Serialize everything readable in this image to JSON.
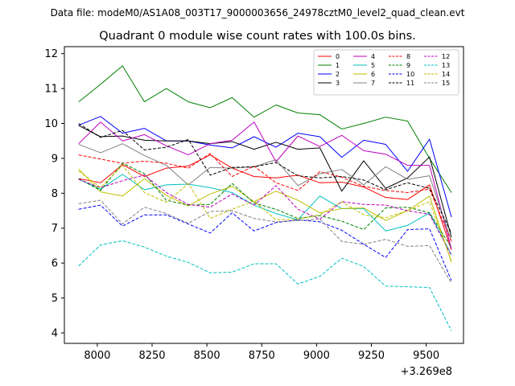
{
  "header": {
    "file_label": "Data file: modeM0/AS1A08_003T17_9000003656_24978cztM0_level2_quad_clean.evt",
    "title": "Quadrant 0 module wise count rates with 100.0s bins."
  },
  "chart_data": {
    "type": "line",
    "title": "Quadrant 0 module wise count rates with 100.0s bins.",
    "xlabel": "",
    "ylabel": "",
    "x_offset_label": "+3.269e8",
    "xlim": [
      7850,
      9670
    ],
    "ylim": [
      3.7,
      12.2
    ],
    "grid": false,
    "legend_placement": "top-right",
    "x_ticks": [
      {
        "value": 8000,
        "label": "8000"
      },
      {
        "value": 8250,
        "label": "8250"
      },
      {
        "value": 8500,
        "label": "8500"
      },
      {
        "value": 8750,
        "label": "8750"
      },
      {
        "value": 9000,
        "label": "9000"
      },
      {
        "value": 9250,
        "label": "9250"
      },
      {
        "value": 9500,
        "label": "9500"
      }
    ],
    "y_ticks": [
      {
        "value": 4,
        "label": "4"
      },
      {
        "value": 5,
        "label": "5"
      },
      {
        "value": 6,
        "label": "6"
      },
      {
        "value": 7,
        "label": "7"
      },
      {
        "value": 8,
        "label": "8"
      },
      {
        "value": 9,
        "label": "9"
      },
      {
        "value": 10,
        "label": "10"
      },
      {
        "value": 11,
        "label": "11"
      },
      {
        "value": 12,
        "label": "12"
      }
    ],
    "x": [
      7915,
      8015,
      8115,
      8215,
      8315,
      8415,
      8515,
      8615,
      8715,
      8815,
      8915,
      9015,
      9115,
      9215,
      9315,
      9415,
      9515,
      9615
    ],
    "series": [
      {
        "name": "0",
        "color": "#ff0000",
        "dashed": false,
        "values": [
          8.42,
          8.3,
          8.82,
          8.48,
          8.72,
          8.78,
          9.1,
          8.72,
          8.48,
          8.44,
          8.52,
          8.3,
          8.32,
          8.18,
          7.88,
          7.82,
          8.24,
          6.38
        ]
      },
      {
        "name": "1",
        "color": "#008000",
        "dashed": false,
        "values": [
          10.62,
          11.12,
          11.65,
          10.62,
          11.0,
          10.62,
          10.45,
          10.74,
          10.18,
          10.53,
          10.3,
          10.25,
          9.84,
          10.0,
          10.18,
          10.07,
          9.0,
          8.02
        ]
      },
      {
        "name": "2",
        "color": "#0000ff",
        "dashed": false,
        "values": [
          9.95,
          10.2,
          9.72,
          9.86,
          9.5,
          9.5,
          9.38,
          9.3,
          9.62,
          9.32,
          9.72,
          9.62,
          9.03,
          9.52,
          9.4,
          8.63,
          9.55,
          7.32
        ]
      },
      {
        "name": "3",
        "color": "#000000",
        "dashed": false,
        "values": [
          9.94,
          9.62,
          9.64,
          9.52,
          9.5,
          9.5,
          9.42,
          9.48,
          9.26,
          9.46,
          9.26,
          9.3,
          8.06,
          8.93,
          8.14,
          8.44,
          9.04,
          6.74
        ]
      },
      {
        "name": "4",
        "color": "#bf00bf",
        "dashed": false,
        "values": [
          9.42,
          10.04,
          9.5,
          9.68,
          9.36,
          9.1,
          9.42,
          9.52,
          10.04,
          8.9,
          9.64,
          9.34,
          9.66,
          9.22,
          9.12,
          8.8,
          8.8,
          6.4
        ]
      },
      {
        "name": "5",
        "color": "#00bfbf",
        "dashed": false,
        "values": [
          8.4,
          8.12,
          8.54,
          8.1,
          8.24,
          8.26,
          8.16,
          8.02,
          7.66,
          7.42,
          7.24,
          7.92,
          7.56,
          7.56,
          6.92,
          7.08,
          7.44,
          6.24
        ]
      },
      {
        "name": "6",
        "color": "#bfbf00",
        "dashed": false,
        "values": [
          8.7,
          8.04,
          7.92,
          8.42,
          7.94,
          7.64,
          7.98,
          8.2,
          7.76,
          8.06,
          7.8,
          7.44,
          7.56,
          7.58,
          7.22,
          7.5,
          7.92,
          6.02
        ]
      },
      {
        "name": "7",
        "color": "#808080",
        "dashed": false,
        "values": [
          9.4,
          9.16,
          9.42,
          9.08,
          8.8,
          8.24,
          8.74,
          8.72,
          8.76,
          8.96,
          8.22,
          8.56,
          8.68,
          8.24,
          8.76,
          8.4,
          8.5,
          6.62
        ]
      },
      {
        "name": "8",
        "color": "#ff0000",
        "dashed": true,
        "values": [
          9.1,
          8.98,
          8.86,
          8.92,
          8.86,
          8.72,
          9.14,
          8.48,
          8.78,
          8.3,
          8.08,
          8.62,
          8.46,
          8.2,
          8.08,
          8.02,
          8.12,
          6.62
        ]
      },
      {
        "name": "9",
        "color": "#008000",
        "dashed": true,
        "values": [
          8.42,
          8.08,
          8.86,
          8.56,
          7.8,
          7.66,
          7.68,
          8.28,
          7.72,
          7.54,
          7.28,
          7.36,
          7.2,
          6.96,
          7.58,
          7.6,
          7.44,
          6.44
        ]
      },
      {
        "name": "10",
        "color": "#0000ff",
        "dashed": true,
        "values": [
          7.54,
          7.66,
          7.06,
          7.38,
          7.38,
          7.12,
          6.86,
          7.44,
          6.92,
          7.16,
          7.24,
          7.18,
          6.94,
          6.54,
          6.16,
          6.96,
          6.98,
          5.5
        ]
      },
      {
        "name": "11",
        "color": "#000000",
        "dashed": true,
        "values": [
          10.0,
          9.6,
          9.8,
          9.24,
          9.32,
          9.54,
          8.52,
          8.74,
          8.76,
          8.88,
          8.5,
          8.44,
          8.48,
          8.38,
          8.1,
          8.3,
          8.14,
          6.86
        ]
      },
      {
        "name": "12",
        "color": "#bf00bf",
        "dashed": true,
        "values": [
          8.4,
          8.16,
          8.36,
          8.52,
          8.02,
          7.68,
          7.6,
          7.98,
          7.66,
          8.22,
          7.54,
          7.26,
          7.76,
          7.68,
          7.66,
          7.5,
          7.4,
          6.22
        ]
      },
      {
        "name": "13",
        "color": "#00bfbf",
        "dashed": true,
        "values": [
          5.92,
          6.52,
          6.64,
          6.46,
          6.2,
          6.02,
          5.72,
          5.74,
          5.98,
          5.98,
          5.4,
          5.62,
          6.14,
          5.9,
          5.34,
          5.32,
          5.3,
          4.06
        ]
      },
      {
        "name": "14",
        "color": "#bfbf00",
        "dashed": true,
        "values": [
          8.64,
          8.16,
          8.8,
          8.02,
          7.74,
          8.28,
          7.28,
          7.54,
          7.78,
          7.24,
          7.26,
          7.38,
          7.76,
          7.38,
          7.3,
          7.5,
          7.76,
          6.06
        ]
      },
      {
        "name": "15",
        "color": "#808080",
        "dashed": true,
        "values": [
          7.7,
          7.8,
          7.12,
          7.6,
          7.42,
          7.14,
          7.48,
          7.5,
          7.28,
          7.18,
          7.22,
          7.26,
          6.62,
          6.54,
          6.68,
          6.48,
          6.5,
          5.42
        ]
      }
    ]
  }
}
